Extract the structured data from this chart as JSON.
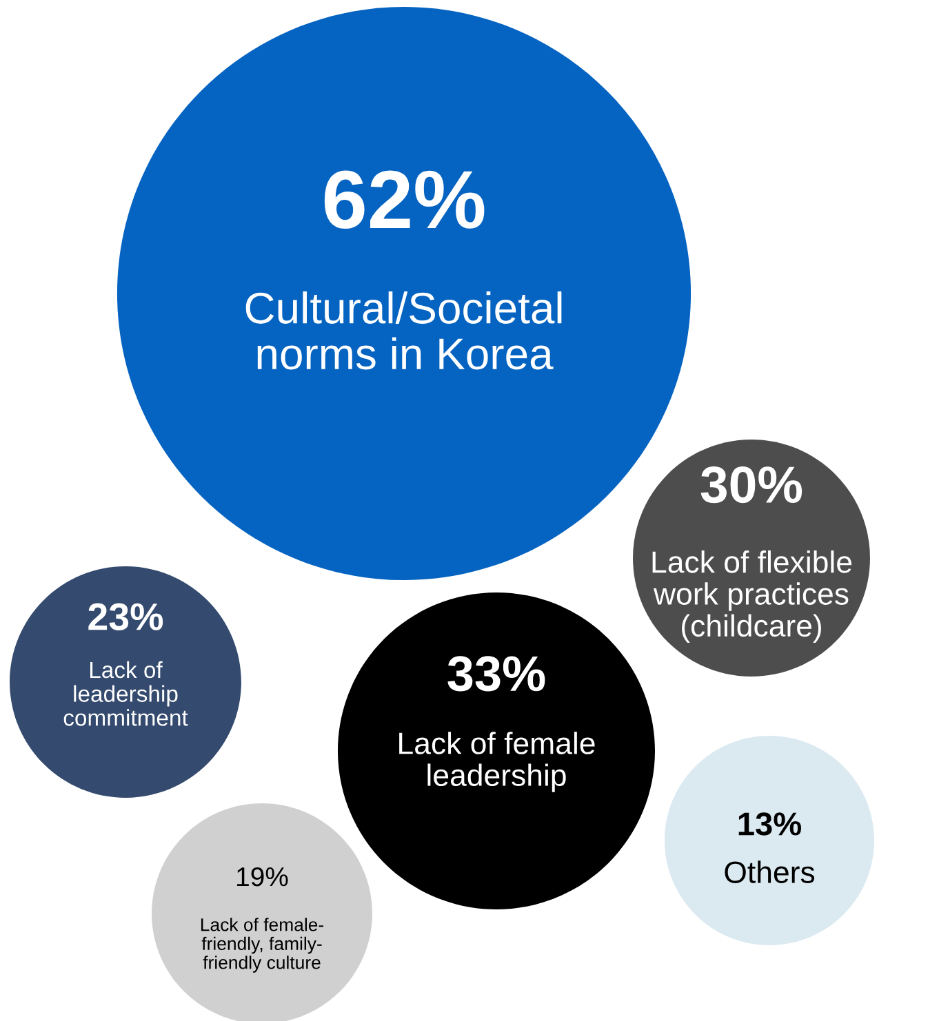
{
  "chart_data": {
    "type": "other",
    "categories": [
      "Cultural/Societal\nnorms in Korea",
      "Lack of flexible\nwork practices\n(childcare)",
      "Lack of\nleadership\ncommitment",
      "Lack of female\nleadership",
      "Others",
      "Lack of female-\nfriendly, family-\nfriendly culture"
    ],
    "values": [
      62,
      30,
      23,
      33,
      13,
      19
    ],
    "value_labels": [
      "62%",
      "30%",
      "23%",
      "33%",
      "13%",
      "19%"
    ],
    "colors": [
      "#0563c1",
      "#4d4d4d",
      "#344a6e",
      "#000000",
      "#dbe9f1",
      "#d0d0d0"
    ]
  }
}
